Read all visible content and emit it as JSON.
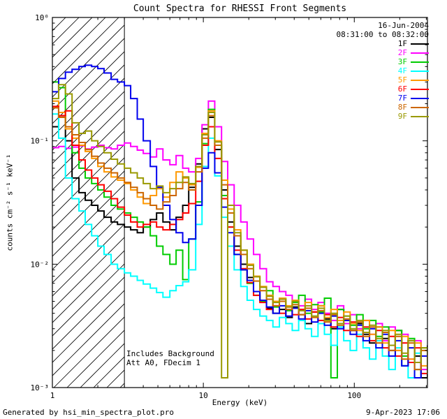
{
  "title": "Count Spectra for RHESSI Front Segments",
  "annotations": {
    "date": "16-Jun-2004",
    "time_range": "08:31:00 to 08:32:00",
    "note1": "Includes Background",
    "note2": "Att A0, FDecim 1"
  },
  "footer": {
    "left": "Generated by hsi_min_spectra_plot.pro",
    "right": "9-Apr-2023 17:06"
  },
  "chart_data": {
    "type": "line",
    "mode": "histogram-steps",
    "scale": "log-log",
    "title": "Count Spectra for RHESSI Front Segments",
    "xlabel": "Energy (keV)",
    "ylabel": "counts cm⁻² s⁻¹ keV⁻¹",
    "xlim": [
      1,
      305.2
    ],
    "ylim": [
      0.001,
      1
    ],
    "grid": false,
    "legend_position": "top-right",
    "x_ticks": [
      {
        "v": 1,
        "label": "1"
      },
      {
        "v": 10,
        "label": "10"
      },
      {
        "v": 100,
        "label": "100"
      }
    ],
    "y_ticks": [
      {
        "v": 0.001,
        "label": "10⁻³"
      },
      {
        "v": 0.01,
        "label": "10⁻²"
      },
      {
        "v": 0.1,
        "label": "10⁻¹"
      },
      {
        "v": 1,
        "label": "10⁰"
      }
    ],
    "hatch_region": {
      "xmin": 1,
      "xmax": 3
    },
    "x": [
      1.0,
      1.1,
      1.22,
      1.35,
      1.5,
      1.65,
      1.82,
      2.0,
      2.2,
      2.45,
      2.7,
      3.0,
      3.3,
      3.65,
      4.0,
      4.45,
      4.9,
      5.4,
      6.0,
      6.6,
      7.3,
      8.0,
      8.9,
      9.8,
      10.8,
      11.9,
      13.2,
      14.5,
      16.0,
      17.7,
      19.5,
      21.5,
      23.7,
      26.2,
      28.9,
      31.9,
      35.2,
      38.8,
      42.8,
      47.2,
      52.1,
      57.5,
      63.4,
      70.0,
      77.2,
      85.1,
      93.9,
      103.6,
      114.3,
      126.1,
      139.1,
      153.5,
      169.3,
      186.8,
      206.1,
      227.3,
      250.8,
      276.7,
      305.2
    ],
    "series": [
      {
        "name": "1F",
        "color": "#000000",
        "values": [
          0.13,
          0.16,
          0.1,
          0.05,
          0.038,
          0.033,
          0.03,
          0.027,
          0.024,
          0.022,
          0.021,
          0.02,
          0.019,
          0.018,
          0.02,
          0.023,
          0.026,
          0.022,
          0.019,
          0.024,
          0.03,
          0.042,
          0.065,
          0.125,
          0.155,
          0.085,
          0.04,
          0.022,
          0.014,
          0.01,
          0.0078,
          0.006,
          0.005,
          0.0044,
          0.004,
          0.0043,
          0.0037,
          0.0045,
          0.0039,
          0.0033,
          0.0041,
          0.0046,
          0.0036,
          0.003,
          0.0043,
          0.0035,
          0.0029,
          0.0033,
          0.0027,
          0.0023,
          0.0031,
          0.0025,
          0.002,
          0.0029,
          0.0015,
          0.0024,
          0.0018,
          0.0012,
          0.0022
        ]
      },
      {
        "name": "2F",
        "color": "#ff00ff",
        "values": [
          0.088,
          0.09,
          0.087,
          0.089,
          0.091,
          0.086,
          0.089,
          0.092,
          0.088,
          0.086,
          0.092,
          0.096,
          0.09,
          0.084,
          0.079,
          0.074,
          0.086,
          0.07,
          0.064,
          0.076,
          0.06,
          0.056,
          0.072,
          0.135,
          0.21,
          0.13,
          0.068,
          0.044,
          0.03,
          0.022,
          0.016,
          0.012,
          0.0092,
          0.0072,
          0.0066,
          0.006,
          0.0056,
          0.0051,
          0.0046,
          0.0052,
          0.0043,
          0.0049,
          0.004,
          0.0035,
          0.0046,
          0.0033,
          0.0039,
          0.003,
          0.0035,
          0.0027,
          0.0033,
          0.0024,
          0.0031,
          0.002,
          0.0027,
          0.0017,
          0.0024,
          0.0014,
          0.0021
        ]
      },
      {
        "name": "3F",
        "color": "#00cc00",
        "values": [
          0.3,
          0.27,
          0.13,
          0.08,
          0.06,
          0.05,
          0.045,
          0.04,
          0.035,
          0.03,
          0.028,
          0.026,
          0.024,
          0.022,
          0.02,
          0.017,
          0.014,
          0.012,
          0.01,
          0.013,
          0.0075,
          0.016,
          0.032,
          0.095,
          0.18,
          0.092,
          0.036,
          0.02,
          0.012,
          0.009,
          0.007,
          0.0056,
          0.005,
          0.0061,
          0.0045,
          0.0052,
          0.0042,
          0.0049,
          0.0056,
          0.004,
          0.0047,
          0.0041,
          0.0053,
          0.0012,
          0.0043,
          0.0038,
          0.0032,
          0.0039,
          0.003,
          0.0035,
          0.0026,
          0.0031,
          0.0022,
          0.0029,
          0.0018,
          0.0025,
          0.0014,
          0.0021,
          0.0016
        ]
      },
      {
        "name": "4F",
        "color": "#00ffff",
        "values": [
          0.165,
          0.105,
          0.05,
          0.034,
          0.027,
          0.021,
          0.017,
          0.014,
          0.012,
          0.01,
          0.0092,
          0.0085,
          0.008,
          0.0074,
          0.0069,
          0.0064,
          0.0059,
          0.0054,
          0.0061,
          0.0067,
          0.0072,
          0.009,
          0.021,
          0.062,
          0.105,
          0.052,
          0.024,
          0.014,
          0.009,
          0.0066,
          0.0051,
          0.0043,
          0.0038,
          0.0035,
          0.0031,
          0.0037,
          0.0033,
          0.0029,
          0.0035,
          0.003,
          0.0026,
          0.0033,
          0.0027,
          0.0022,
          0.0031,
          0.0024,
          0.002,
          0.0027,
          0.0021,
          0.0017,
          0.0024,
          0.0018,
          0.0014,
          0.0021,
          0.0015,
          0.0012,
          0.0019,
          0.0013,
          0.0017
        ]
      },
      {
        "name": "5F",
        "color": "#ff9900",
        "values": [
          0.21,
          0.17,
          0.125,
          0.105,
          0.092,
          0.082,
          0.072,
          0.062,
          0.056,
          0.051,
          0.048,
          0.045,
          0.04,
          0.035,
          0.031,
          0.036,
          0.041,
          0.035,
          0.046,
          0.056,
          0.05,
          0.044,
          0.061,
          0.115,
          0.175,
          0.1,
          0.048,
          0.028,
          0.019,
          0.013,
          0.01,
          0.008,
          0.0066,
          0.0056,
          0.005,
          0.0053,
          0.0046,
          0.0051,
          0.0043,
          0.0049,
          0.0041,
          0.0046,
          0.0037,
          0.0043,
          0.0035,
          0.0041,
          0.0033,
          0.0029,
          0.0035,
          0.0027,
          0.0031,
          0.0023,
          0.0029,
          0.002,
          0.0026,
          0.0017,
          0.0023,
          0.0015,
          0.002
        ]
      },
      {
        "name": "6F",
        "color": "#ff0000",
        "values": [
          0.19,
          0.16,
          0.175,
          0.092,
          0.07,
          0.058,
          0.05,
          0.044,
          0.039,
          0.034,
          0.029,
          0.025,
          0.022,
          0.02,
          0.021,
          0.022,
          0.02,
          0.019,
          0.021,
          0.023,
          0.026,
          0.031,
          0.047,
          0.092,
          0.13,
          0.072,
          0.034,
          0.02,
          0.013,
          0.0092,
          0.0071,
          0.0056,
          0.0049,
          0.0043,
          0.0046,
          0.004,
          0.0045,
          0.0039,
          0.0043,
          0.0036,
          0.0041,
          0.0035,
          0.0039,
          0.0031,
          0.0037,
          0.0029,
          0.0034,
          0.0026,
          0.0031,
          0.0024,
          0.0029,
          0.0021,
          0.0026,
          0.0018,
          0.0023,
          0.0016,
          0.0021,
          0.0013,
          0.0019
        ]
      },
      {
        "name": "7F",
        "color": "#0000ee",
        "values": [
          0.25,
          0.32,
          0.36,
          0.38,
          0.4,
          0.41,
          0.4,
          0.385,
          0.355,
          0.315,
          0.3,
          0.28,
          0.22,
          0.15,
          0.1,
          0.062,
          0.042,
          0.03,
          0.023,
          0.018,
          0.015,
          0.016,
          0.03,
          0.06,
          0.08,
          0.055,
          0.029,
          0.018,
          0.012,
          0.009,
          0.0074,
          0.006,
          0.0051,
          0.0045,
          0.004,
          0.0046,
          0.0038,
          0.0044,
          0.0036,
          0.0042,
          0.0034,
          0.004,
          0.0032,
          0.0038,
          0.003,
          0.0035,
          0.0027,
          0.0032,
          0.0024,
          0.003,
          0.0021,
          0.0027,
          0.0018,
          0.0024,
          0.0015,
          0.0021,
          0.0012,
          0.0018,
          0.0014
        ]
      },
      {
        "name": "8F",
        "color": "#cc6600",
        "values": [
          0.185,
          0.155,
          0.13,
          0.112,
          0.097,
          0.085,
          0.075,
          0.066,
          0.06,
          0.055,
          0.05,
          0.046,
          0.042,
          0.038,
          0.034,
          0.03,
          0.028,
          0.032,
          0.036,
          0.041,
          0.046,
          0.04,
          0.056,
          0.105,
          0.16,
          0.092,
          0.044,
          0.026,
          0.017,
          0.012,
          0.0092,
          0.0073,
          0.0061,
          0.0052,
          0.0046,
          0.005,
          0.0043,
          0.0047,
          0.0039,
          0.0044,
          0.0037,
          0.0042,
          0.0034,
          0.0039,
          0.0032,
          0.0036,
          0.0029,
          0.0034,
          0.0026,
          0.0031,
          0.0023,
          0.0028,
          0.002,
          0.0026,
          0.0017,
          0.0023,
          0.0014,
          0.002,
          0.0016
        ]
      },
      {
        "name": "9F",
        "color": "#999900",
        "values": [
          0.22,
          0.285,
          0.24,
          0.14,
          0.115,
          0.12,
          0.1,
          0.09,
          0.08,
          0.071,
          0.065,
          0.06,
          0.055,
          0.05,
          0.045,
          0.041,
          0.043,
          0.038,
          0.041,
          0.046,
          0.051,
          0.045,
          0.062,
          0.112,
          0.17,
          0.098,
          0.0012,
          0.03,
          0.018,
          0.013,
          0.0098,
          0.0079,
          0.0065,
          0.0055,
          0.0049,
          0.0052,
          0.0045,
          0.005,
          0.0042,
          0.0046,
          0.0038,
          0.0044,
          0.0035,
          0.004,
          0.0033,
          0.0038,
          0.003,
          0.0035,
          0.0028,
          0.0032,
          0.0025,
          0.0029,
          0.0022,
          0.0027,
          0.0019,
          0.0024,
          0.0016,
          0.0021,
          0.0013
        ]
      }
    ]
  }
}
